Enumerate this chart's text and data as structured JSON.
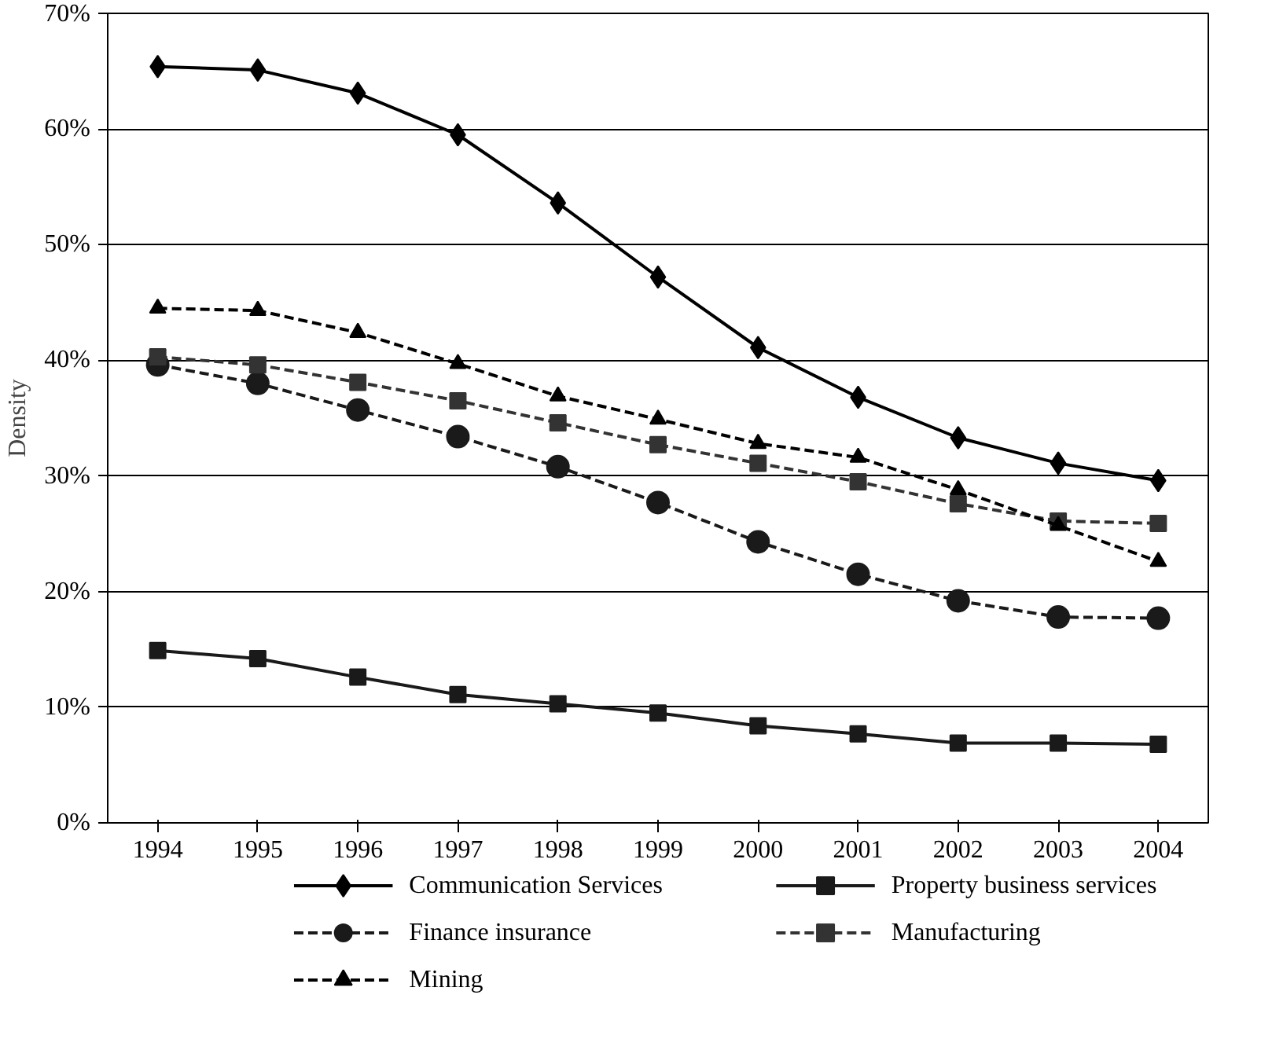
{
  "chart_data": {
    "type": "line",
    "ylabel": "Density",
    "categories": [
      "1994",
      "1995",
      "1996",
      "1997",
      "1998",
      "1999",
      "2000",
      "2001",
      "2002",
      "2003",
      "2004"
    ],
    "ylim": [
      0,
      70
    ],
    "yticks": [
      {
        "value": 0,
        "label": "0%"
      },
      {
        "value": 10,
        "label": "10%"
      },
      {
        "value": 20,
        "label": "20%"
      },
      {
        "value": 30,
        "label": "30%"
      },
      {
        "value": 40,
        "label": "40%"
      },
      {
        "value": 50,
        "label": "50%"
      },
      {
        "value": 60,
        "label": "60%"
      },
      {
        "value": 70,
        "label": "70%"
      }
    ],
    "grid": "y",
    "legend": "bottom",
    "series": [
      {
        "name": "Communication Services",
        "color": "#000000",
        "marker": "diamond",
        "line_style": "solid",
        "values": [
          65.4,
          65.1,
          63.1,
          59.5,
          53.6,
          47.2,
          41.1,
          36.8,
          33.3,
          31.1,
          29.6
        ]
      },
      {
        "name": "Property business services",
        "color": "#1a1a1a",
        "marker": "square",
        "line_style": "solid",
        "values": [
          14.9,
          14.2,
          12.6,
          11.1,
          10.3,
          9.5,
          8.4,
          7.7,
          6.9,
          6.9,
          6.8
        ]
      },
      {
        "name": "Finance insurance",
        "color": "#1a1a1a",
        "marker": "circle",
        "line_style": "dashed",
        "values": [
          39.6,
          38.0,
          35.7,
          33.4,
          30.8,
          27.7,
          24.3,
          21.5,
          19.2,
          17.8,
          17.7
        ]
      },
      {
        "name": "Manufacturing",
        "color": "#333333",
        "marker": "square",
        "line_style": "dashed",
        "values": [
          40.3,
          39.6,
          38.1,
          36.5,
          34.6,
          32.7,
          31.1,
          29.5,
          27.6,
          26.1,
          25.9
        ]
      },
      {
        "name": "Mining",
        "color": "#000000",
        "marker": "triangle",
        "line_style": "dashed",
        "values": [
          44.5,
          44.3,
          42.4,
          39.7,
          36.9,
          34.9,
          32.8,
          31.6,
          28.8,
          25.7,
          22.6
        ]
      }
    ]
  }
}
